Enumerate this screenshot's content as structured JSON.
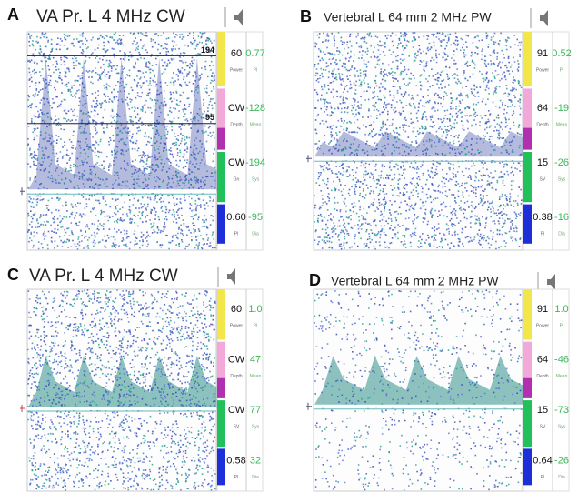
{
  "panels": [
    {
      "letter": "A",
      "title": "VA Pr. L 4 MHz CW",
      "left_values": [
        "60",
        "CW",
        "CW",
        "0.60"
      ],
      "right_values": [
        "0.77",
        "-128",
        "-194",
        "-95"
      ],
      "small_labels": [
        "Power",
        "PI",
        "Depth",
        "Mean",
        "Gn",
        "Sys",
        "PI",
        "Dia"
      ],
      "markers": [
        "194",
        "95"
      ]
    },
    {
      "letter": "B",
      "title": "Vertebral L 64 mm 2 MHz PW",
      "left_values": [
        "91",
        "64",
        "15",
        "0.38"
      ],
      "right_values": [
        "0.52",
        "-19",
        "-26",
        "-16"
      ],
      "small_labels": [
        "Power",
        "PI",
        "Depth",
        "Mean",
        "SV",
        "Sys",
        "PI",
        "Dia"
      ]
    },
    {
      "letter": "C",
      "title": "VA Pr. L 4 MHz CW",
      "left_values": [
        "60",
        "CW",
        "CW",
        "0.58"
      ],
      "right_values": [
        "1.0",
        "47",
        "77",
        "32"
      ],
      "small_labels": [
        "Power",
        "PI",
        "Depth",
        "Mean",
        "SV",
        "Sys",
        "PI",
        "Dia"
      ]
    },
    {
      "letter": "D",
      "title": "Vertebral L 64 mm 2 MHz PW",
      "left_values": [
        "91",
        "64",
        "15",
        "0.64"
      ],
      "right_values": [
        "1.0",
        "-46",
        "-73",
        "-26"
      ],
      "small_labels": [
        "Power",
        "PI",
        "Depth",
        "Mean",
        "SV",
        "Sys",
        "PI",
        "Dia"
      ]
    }
  ]
}
